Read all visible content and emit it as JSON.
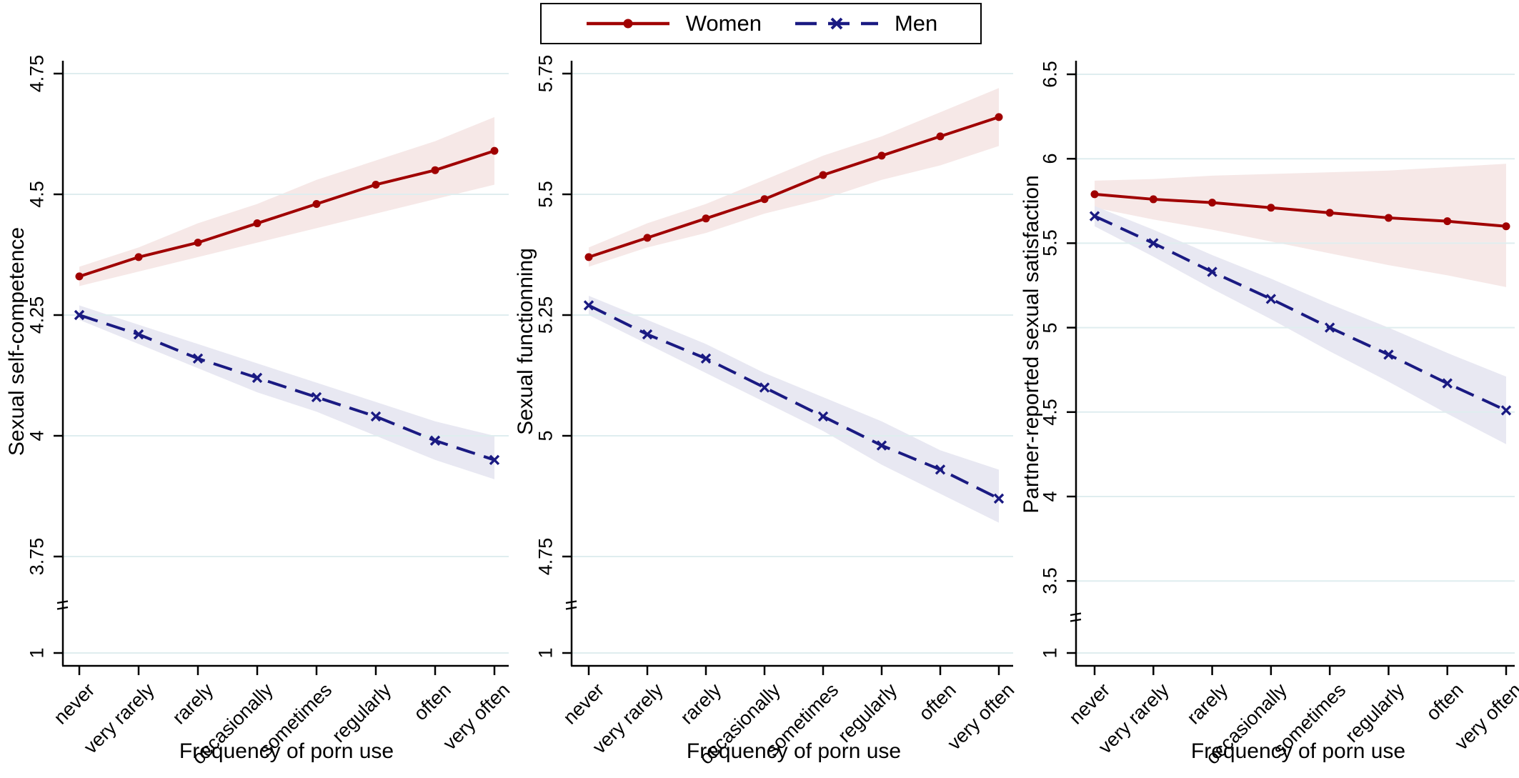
{
  "figure": {
    "legend_position": "top-center",
    "legend": [
      {
        "label": "Women"
      },
      {
        "label": "Men"
      }
    ],
    "grid_color": "#dfedef",
    "axis_color": "#000000"
  },
  "chart_data": [
    {
      "type": "line",
      "ylabel": "Sexual self-competence",
      "xlabel": "Frequency of porn use",
      "categories": [
        "never",
        "very rarely",
        "rarely",
        "occasionally",
        "sometimes",
        "regularly",
        "often",
        "very often"
      ],
      "yaxis": {
        "tick_labels": [
          "4.75",
          "4.5",
          "4.25",
          "4",
          "3.75"
        ],
        "tick_values": [
          4.75,
          4.5,
          4.25,
          4.0,
          3.75
        ],
        "axis_break": true,
        "bottom_tick_label": "1",
        "bottom_tick_value": 1,
        "grid": true
      },
      "series": [
        {
          "name": "Women",
          "color": "#a00000",
          "band_color": "#f6e8e7",
          "line_style": "solid",
          "marker": "circle",
          "values": [
            4.33,
            4.37,
            4.4,
            4.44,
            4.48,
            4.52,
            4.55,
            4.59
          ],
          "ci_low": [
            4.31,
            4.34,
            4.37,
            4.4,
            4.43,
            4.46,
            4.49,
            4.52
          ],
          "ci_high": [
            4.35,
            4.39,
            4.44,
            4.48,
            4.53,
            4.57,
            4.61,
            4.66
          ]
        },
        {
          "name": "Men",
          "color": "#1a1a82",
          "band_color": "#e8e8f2",
          "line_style": "dash",
          "marker": "x",
          "values": [
            4.25,
            4.21,
            4.16,
            4.12,
            4.08,
            4.04,
            3.99,
            3.95
          ],
          "ci_low": [
            4.24,
            4.19,
            4.14,
            4.09,
            4.05,
            4.0,
            3.95,
            3.91
          ],
          "ci_high": [
            4.27,
            4.23,
            4.19,
            4.15,
            4.11,
            4.07,
            4.03,
            4.0
          ]
        }
      ]
    },
    {
      "type": "line",
      "ylabel": "Sexual functionning",
      "xlabel": "Frequency of porn use",
      "categories": [
        "never",
        "very rarely",
        "rarely",
        "occasionally",
        "sometimes",
        "regularly",
        "often",
        "very often"
      ],
      "yaxis": {
        "tick_labels": [
          "5.75",
          "5.5",
          "5.25",
          "5",
          "4.75"
        ],
        "tick_values": [
          5.75,
          5.5,
          5.25,
          5.0,
          4.75
        ],
        "axis_break": true,
        "bottom_tick_label": "1",
        "bottom_tick_value": 1,
        "grid": true
      },
      "series": [
        {
          "name": "Women",
          "color": "#a00000",
          "band_color": "#f6e8e7",
          "line_style": "solid",
          "marker": "circle",
          "values": [
            5.37,
            5.41,
            5.45,
            5.49,
            5.54,
            5.58,
            5.62,
            5.66
          ],
          "ci_low": [
            5.35,
            5.39,
            5.42,
            5.46,
            5.49,
            5.53,
            5.56,
            5.6
          ],
          "ci_high": [
            5.39,
            5.44,
            5.48,
            5.53,
            5.58,
            5.62,
            5.67,
            5.72
          ]
        },
        {
          "name": "Men",
          "color": "#1a1a82",
          "band_color": "#e8e8f2",
          "line_style": "dash",
          "marker": "x",
          "values": [
            5.27,
            5.21,
            5.16,
            5.1,
            5.04,
            4.98,
            4.93,
            4.87
          ],
          "ci_low": [
            5.25,
            5.19,
            5.13,
            5.07,
            5.01,
            4.94,
            4.88,
            4.82
          ],
          "ci_high": [
            5.29,
            5.24,
            5.19,
            5.13,
            5.08,
            5.03,
            4.97,
            4.93
          ]
        }
      ]
    },
    {
      "type": "line",
      "ylabel": "Partner-reported sexual satisfaction",
      "xlabel": "Frequency of porn use",
      "categories": [
        "never",
        "very rarely",
        "rarely",
        "occasionally",
        "sometimes",
        "regularly",
        "often",
        "very often"
      ],
      "yaxis": {
        "tick_labels": [
          "6.5",
          "6",
          "5.5",
          "5",
          "4.5",
          "4",
          "3.5"
        ],
        "tick_values": [
          6.5,
          6.0,
          5.5,
          5.0,
          4.5,
          4.0,
          3.5
        ],
        "axis_break": true,
        "bottom_tick_label": "1",
        "bottom_tick_value": 1,
        "grid": true
      },
      "series": [
        {
          "name": "Women",
          "color": "#a00000",
          "band_color": "#f6e8e7",
          "line_style": "solid",
          "marker": "circle",
          "values": [
            5.79,
            5.76,
            5.74,
            5.71,
            5.68,
            5.65,
            5.63,
            5.6
          ],
          "ci_low": [
            5.71,
            5.64,
            5.58,
            5.51,
            5.44,
            5.37,
            5.31,
            5.24
          ],
          "ci_high": [
            5.87,
            5.88,
            5.9,
            5.91,
            5.92,
            5.93,
            5.95,
            5.97
          ]
        },
        {
          "name": "Men",
          "color": "#1a1a82",
          "band_color": "#e8e8f2",
          "line_style": "dash",
          "marker": "x",
          "values": [
            5.66,
            5.5,
            5.33,
            5.17,
            5.0,
            4.84,
            4.67,
            4.51
          ],
          "ci_low": [
            5.6,
            5.42,
            5.23,
            5.05,
            4.86,
            4.68,
            4.49,
            4.31
          ],
          "ci_high": [
            5.72,
            5.58,
            5.43,
            5.29,
            5.14,
            5.0,
            4.85,
            4.71
          ]
        }
      ]
    }
  ]
}
